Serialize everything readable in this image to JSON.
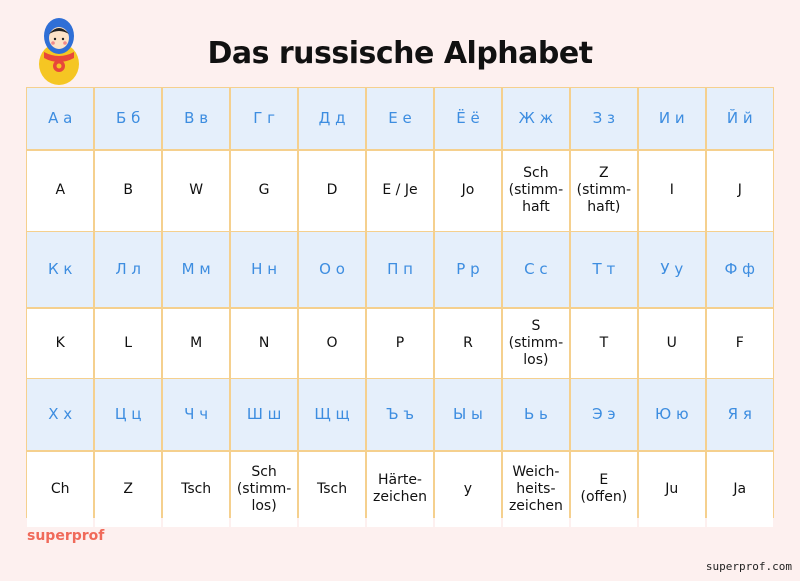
{
  "header": {
    "title": "Das russische Alphabet"
  },
  "table": {
    "rows": [
      [
        "А а",
        "Б б",
        "В в",
        "Г г",
        "Д д",
        "Е е",
        "Ё ё",
        "Ж ж",
        "З з",
        "И и",
        "Й й"
      ],
      [
        "A",
        "B",
        "W",
        "G",
        "D",
        "E / Je",
        "Jo",
        "Sch\n(stimm-\nhaft",
        "Z\n(stimm-\nhaft)",
        "I",
        "J"
      ],
      [
        "К к",
        "Л л",
        "М м",
        "Н н",
        "О о",
        "П п",
        "Р р",
        "С с",
        "Т т",
        "У у",
        "Ф ф"
      ],
      [
        "K",
        "L",
        "M",
        "N",
        "O",
        "P",
        "R",
        "S\n(stimm-\nlos)",
        "T",
        "U",
        "F"
      ],
      [
        "Х х",
        "Ц ц",
        "Ч ч",
        "Ш ш",
        "Щ щ",
        "Ъ ъ",
        "Ы ы",
        "Ь ь",
        "Э э",
        "Ю ю",
        "Я я"
      ],
      [
        "Ch",
        "Z",
        "Tsch",
        "Sch\n(stimm-\nlos)",
        "Tsch",
        "Härte-\nzeichen",
        "y",
        "Weich-\nheits-\nzeichen",
        "E\n(offen)",
        "Ju",
        "Ja"
      ]
    ]
  },
  "footer": {
    "brand": "superprof",
    "watermark": "superprof.com"
  }
}
